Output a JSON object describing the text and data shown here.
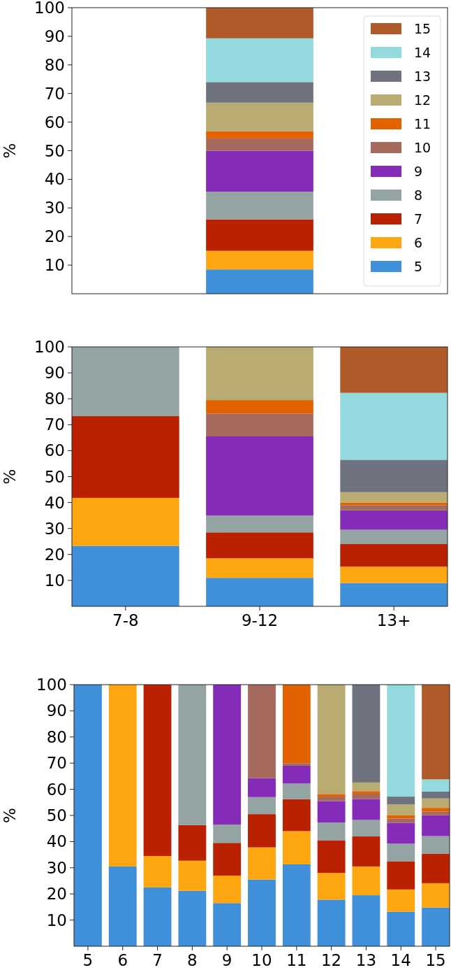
{
  "chart_data": [
    {
      "type": "bar",
      "stacked": true,
      "ylabel": "%",
      "categories": [
        null
      ],
      "ylim": [
        0,
        100
      ],
      "yticks": [
        10,
        20,
        30,
        40,
        50,
        60,
        70,
        80,
        90,
        100
      ],
      "tick_labels": "y",
      "legend": "top right",
      "series": [
        {
          "name": "5",
          "color": "#3f8fd9",
          "values": [
            8.5
          ]
        },
        {
          "name": "6",
          "color": "#fda610",
          "values": [
            6.5
          ]
        },
        {
          "name": "7",
          "color": "#ba2100",
          "values": [
            11
          ]
        },
        {
          "name": "8",
          "color": "#94a4a2",
          "values": [
            9.7
          ]
        },
        {
          "name": "9",
          "color": "#842cb8",
          "values": [
            14.3
          ]
        },
        {
          "name": "10",
          "color": "#a56a5b",
          "values": [
            4.3
          ]
        },
        {
          "name": "11",
          "color": "#e26200",
          "values": [
            2.5
          ]
        },
        {
          "name": "12",
          "color": "#b9ab72",
          "values": [
            10
          ]
        },
        {
          "name": "13",
          "color": "#6f7380",
          "values": [
            7.2
          ]
        },
        {
          "name": "14",
          "color": "#94d9de",
          "values": [
            15.3
          ]
        },
        {
          "name": "15",
          "color": "#b05a2a",
          "values": [
            10.7
          ]
        }
      ]
    },
    {
      "type": "bar",
      "stacked": true,
      "ylabel": "%",
      "categories": [
        "7-8",
        "9-12",
        "13+"
      ],
      "ylim": [
        0,
        100
      ],
      "yticks": [
        10,
        20,
        30,
        40,
        50,
        60,
        70,
        80,
        90,
        100
      ],
      "series": [
        {
          "color": "#3f8fd9",
          "values": [
            23.3,
            11,
            9
          ]
        },
        {
          "color": "#fda610",
          "values": [
            18.5,
            7.5,
            6.3
          ]
        },
        {
          "color": "#ba2100",
          "values": [
            31.5,
            10,
            8.7
          ]
        },
        {
          "color": "#94a4a2",
          "values": [
            26.7,
            6.5,
            5.5
          ]
        },
        {
          "color": "#842cb8",
          "values": [
            null,
            30.5,
            7.5
          ]
        },
        {
          "color": "#a56a5b",
          "values": [
            null,
            8.8,
            2
          ]
        },
        {
          "color": "#e26200",
          "values": [
            null,
            5.2,
            1
          ]
        },
        {
          "color": "#b9ab72",
          "values": [
            null,
            20.5,
            4
          ]
        },
        {
          "color": "#6f7380",
          "values": [
            null,
            null,
            12.5
          ]
        },
        {
          "color": "#94d9de",
          "values": [
            null,
            null,
            25.8
          ]
        },
        {
          "color": "#b05a2a",
          "values": [
            null,
            null,
            17.7
          ]
        }
      ]
    },
    {
      "type": "bar",
      "stacked": true,
      "ylabel": "%",
      "categories": [
        "5",
        "6",
        "7",
        "8",
        "9",
        "10",
        "11",
        "12",
        "13",
        "14",
        "15"
      ],
      "ylim": [
        0,
        100
      ],
      "yticks": [
        10,
        20,
        30,
        40,
        50,
        60,
        70,
        80,
        90,
        100
      ],
      "series": [
        {
          "color": "#3f8fd9",
          "values": [
            100,
            30.5,
            22.5,
            21.2,
            16.5,
            25.5,
            31.3,
            17.8,
            19.5,
            13.2,
            14.8
          ]
        },
        {
          "color": "#fda610",
          "values": [
            null,
            69.5,
            12,
            11.5,
            10.5,
            12.3,
            12.7,
            10.2,
            11,
            8.5,
            9.3
          ]
        },
        {
          "color": "#ba2100",
          "values": [
            null,
            null,
            65.5,
            13.6,
            12.5,
            12.7,
            12.2,
            12.5,
            11.5,
            10.8,
            11.2
          ]
        },
        {
          "color": "#94a4a2",
          "values": [
            null,
            null,
            null,
            53.7,
            7,
            6.5,
            6,
            6.8,
            6.3,
            6.7,
            6.8
          ]
        },
        {
          "color": "#842cb8",
          "values": [
            null,
            null,
            null,
            null,
            53.5,
            7.3,
            6.8,
            8.2,
            8,
            8,
            8
          ]
        },
        {
          "color": "#a56a5b",
          "values": [
            null,
            null,
            null,
            null,
            null,
            35.7,
            1,
            1.7,
            2,
            1.6,
            1.4
          ]
        },
        {
          "color": "#e26200",
          "values": [
            null,
            null,
            null,
            null,
            null,
            null,
            30,
            1,
            1,
            1.2,
            1.4
          ]
        },
        {
          "color": "#b9ab72",
          "values": [
            null,
            null,
            null,
            null,
            null,
            null,
            null,
            41.8,
            3.3,
            4.2,
            3.6
          ]
        },
        {
          "color": "#6f7380",
          "values": [
            null,
            null,
            null,
            null,
            null,
            null,
            null,
            null,
            37.4,
            3,
            2.6
          ]
        },
        {
          "color": "#94d9de",
          "values": [
            null,
            null,
            null,
            null,
            null,
            null,
            null,
            null,
            null,
            42.8,
            4.7
          ]
        },
        {
          "color": "#b05a2a",
          "values": [
            null,
            null,
            null,
            null,
            null,
            null,
            null,
            null,
            null,
            null,
            36.2
          ]
        }
      ]
    }
  ]
}
